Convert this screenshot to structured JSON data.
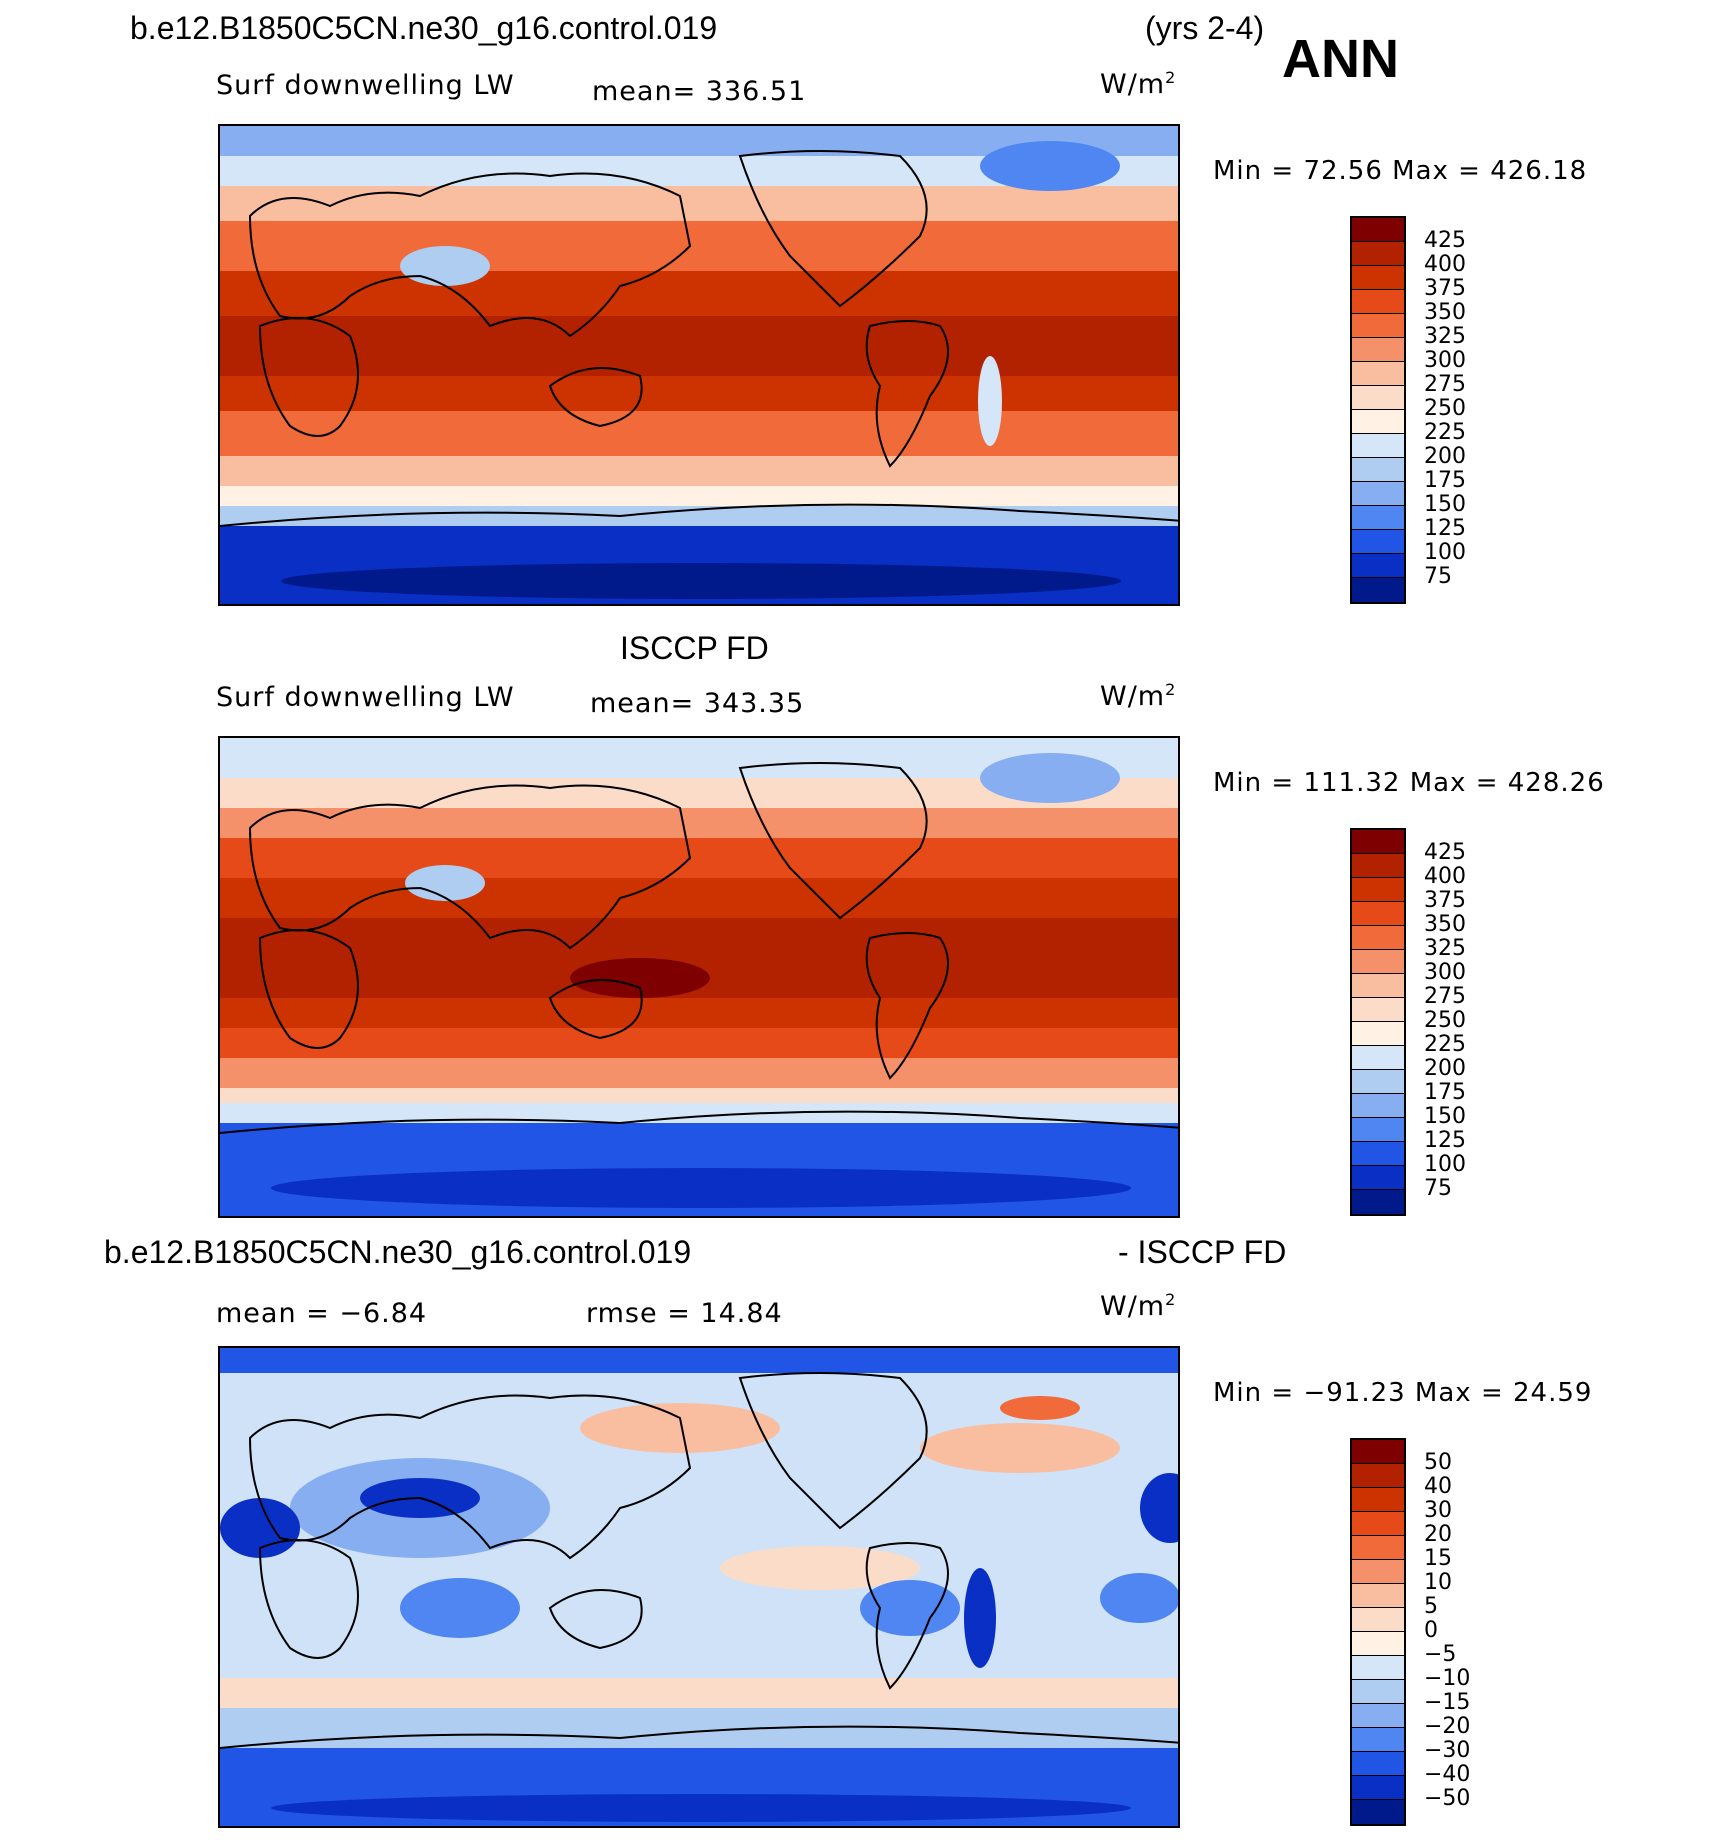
{
  "header": {
    "case_name": "b.e12.B1850C5CN.ne30_g16.control.019",
    "years": "(yrs 2-4)",
    "season": "ANN"
  },
  "panels": [
    {
      "id": "model",
      "var_label": "Surf downwelling LW",
      "stat_text": "mean=  336.51",
      "units": "W/m",
      "units_sup": "2",
      "minmax": "Min =   72.56  Max  =  426.18"
    },
    {
      "id": "obs",
      "title": "ISCCP FD",
      "var_label": "Surf downwelling LW",
      "stat_text": "mean=  343.35",
      "units": "W/m",
      "units_sup": "2",
      "minmax": "Min  =  111.32  Max  =  428.26"
    },
    {
      "id": "diff",
      "title_left": "b.e12.B1850C5CN.ne30_g16.control.019",
      "title_right": "- ISCCP FD",
      "mean_text": "mean  =   −6.84",
      "rmse_text": "rmse  =    14.84",
      "units": "W/m",
      "units_sup": "2",
      "minmax": "Min  =  −91.23  Max  =    24.59"
    }
  ],
  "colorbars": {
    "absolute": {
      "levels": [
        "425",
        "400",
        "375",
        "350",
        "325",
        "300",
        "275",
        "250",
        "225",
        "200",
        "175",
        "150",
        "125",
        "100",
        "75"
      ],
      "colors": [
        "#7f0000",
        "#b22200",
        "#cc3300",
        "#e64a19",
        "#f06a3a",
        "#f4906a",
        "#f9bea0",
        "#fbdcc8",
        "#fff2e4",
        "#d4e6f7",
        "#aecdf0",
        "#86aef0",
        "#4f86f2",
        "#2155e6",
        "#0a2fc4",
        "#001a8c"
      ]
    },
    "difference": {
      "levels": [
        "50",
        "40",
        "30",
        "20",
        "15",
        "10",
        "5",
        "0",
        "−5",
        "−10",
        "−15",
        "−20",
        "−30",
        "−40",
        "−50"
      ],
      "colors": [
        "#7f0000",
        "#b22200",
        "#cc3300",
        "#e64a19",
        "#f06a3a",
        "#f4906a",
        "#f9bea0",
        "#fbdcc8",
        "#fff2e4",
        "#d4e6f7",
        "#aecdf0",
        "#86aef0",
        "#4f86f2",
        "#2155e6",
        "#0a2fc4",
        "#001a8c"
      ]
    }
  },
  "colors": {
    "polar_blue": "#1f4fd8",
    "tropics_red": "#c42a00",
    "midlat_orange": "#f07a4a",
    "diff_background": "#cfe2f8"
  }
}
